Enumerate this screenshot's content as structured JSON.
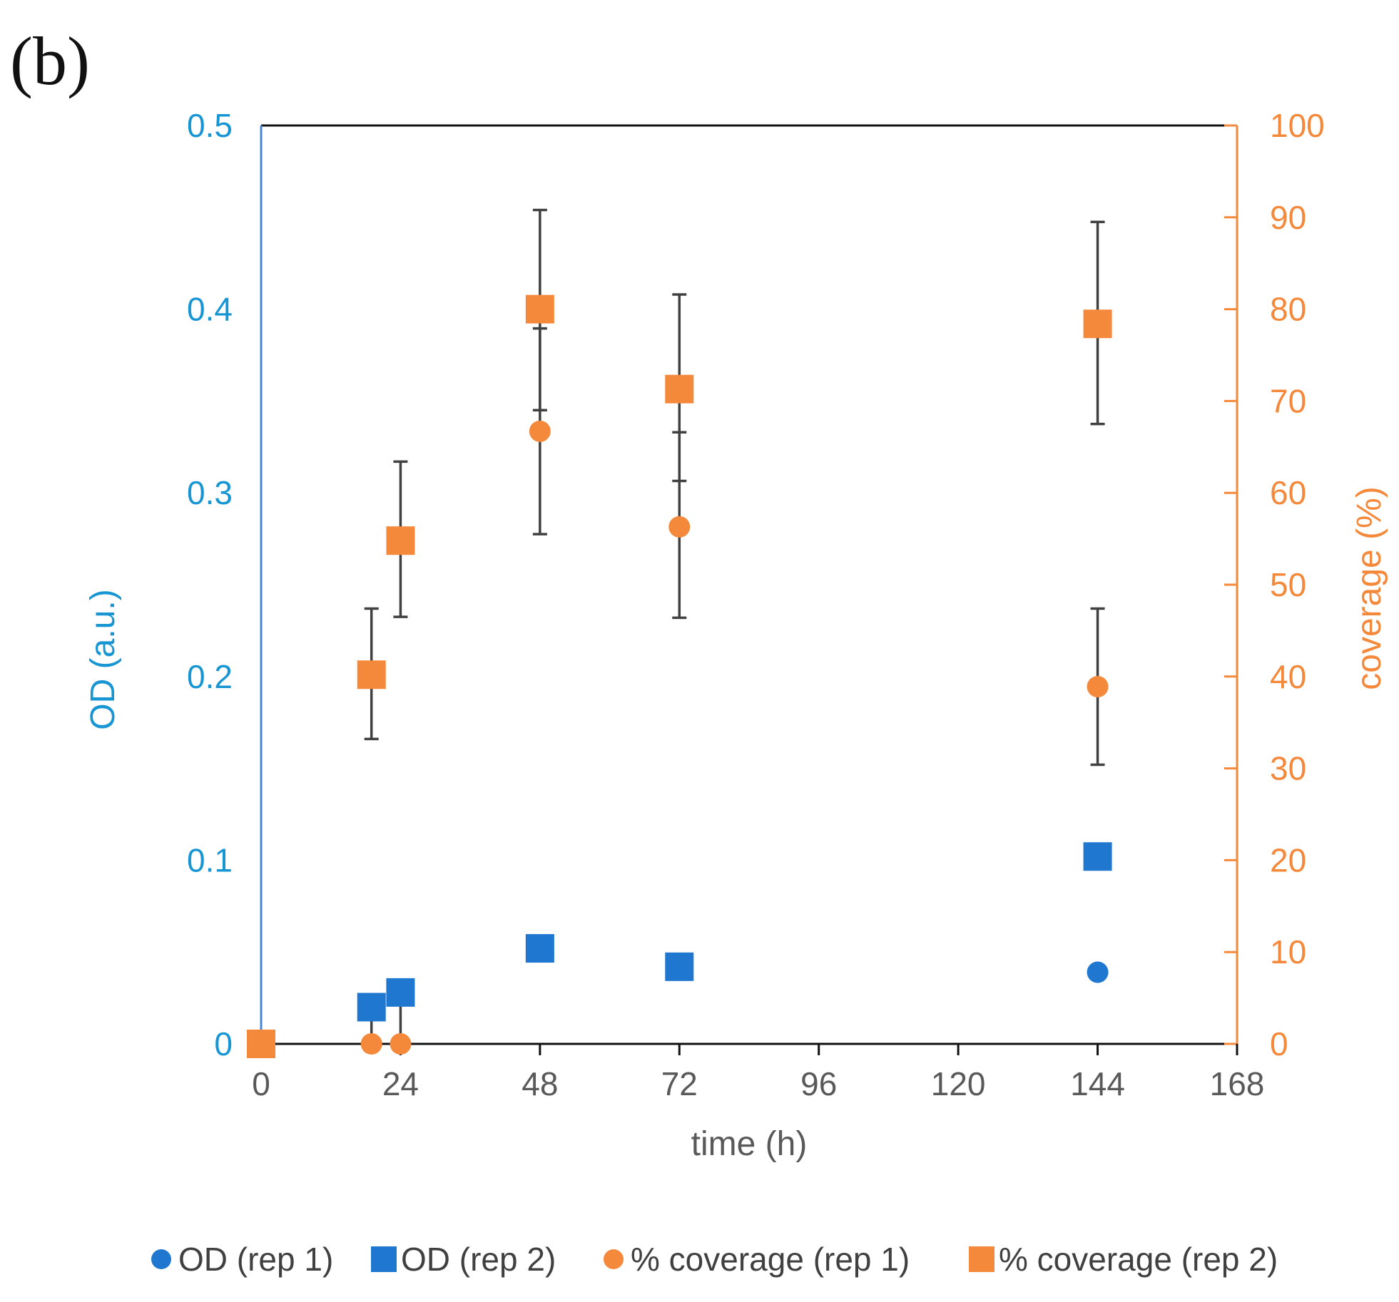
{
  "panel_label": "(b)",
  "colors": {
    "od": "#1f77d0",
    "coverage": "#f5893b",
    "left_axis": "#1796d3",
    "left_axis_line": "#4a86d8",
    "right_axis": "#f5893b",
    "error_bar": "#404040",
    "frame": "#111111"
  },
  "chart_data": {
    "type": "scatter",
    "xlabel": "time (h)",
    "ylabel_left": "OD (a.u.)",
    "ylabel_right": "coverage (%)",
    "xlim": [
      0,
      168
    ],
    "xticks": [
      0,
      24,
      48,
      72,
      96,
      120,
      144,
      168
    ],
    "ylim_left": [
      0,
      0.5
    ],
    "yticks_left": [
      "0",
      "0.1",
      "0.2",
      "0.3",
      "0.4",
      "0.5"
    ],
    "ylim_right": [
      0,
      100
    ],
    "yticks_right": [
      "0",
      "10",
      "20",
      "30",
      "40",
      "50",
      "60",
      "70",
      "80",
      "90",
      "100"
    ],
    "grid": false,
    "legend_position": "bottom",
    "series": [
      {
        "name": "OD (rep 1)",
        "axis": "left",
        "marker": "circle",
        "color": "#1f77d0",
        "points": [
          {
            "x": 144,
            "y": 0.039
          }
        ]
      },
      {
        "name": "OD (rep 2)",
        "axis": "left",
        "marker": "square",
        "color": "#1f77d0",
        "points": [
          {
            "x": 19,
            "y": 0.02
          },
          {
            "x": 24,
            "y": 0.028
          },
          {
            "x": 48,
            "y": 0.052
          },
          {
            "x": 72,
            "y": 0.042
          },
          {
            "x": 144,
            "y": 0.102
          }
        ]
      },
      {
        "name": "% coverage (rep 1)",
        "axis": "right",
        "marker": "circle",
        "color": "#f5893b",
        "points": [
          {
            "x": 19,
            "y": 0
          },
          {
            "x": 24,
            "y": 0
          },
          {
            "x": 48,
            "y": 66.7,
            "err_low": 55.5,
            "err_high": 77.9
          },
          {
            "x": 72,
            "y": 56.3,
            "err_low": 46.4,
            "err_high": 66.6
          },
          {
            "x": 144,
            "y": 38.9,
            "err_low": 30.4,
            "err_high": 47.4
          }
        ]
      },
      {
        "name": "% coverage (rep 2)",
        "axis": "right",
        "marker": "square",
        "color": "#f5893b",
        "points": [
          {
            "x": 0,
            "y": 0
          },
          {
            "x": 19,
            "y": 40.2,
            "err_low": 33.2,
            "err_high": 47.4
          },
          {
            "x": 24,
            "y": 54.8,
            "err_low": 46.5,
            "err_high": 63.4
          },
          {
            "x": 48,
            "y": 80.0,
            "err_low": 69.0,
            "err_high": 90.8
          },
          {
            "x": 72,
            "y": 71.3,
            "err_low": 61.3,
            "err_high": 81.6
          },
          {
            "x": 144,
            "y": 78.4,
            "err_low": 67.5,
            "err_high": 89.5
          }
        ]
      },
      {
        "name": "OD error bars",
        "axis": "left",
        "marker": "none",
        "points": [
          {
            "x": 19,
            "y": 0.02,
            "err_low": 0.0,
            "err_high": 0.024
          },
          {
            "x": 24,
            "y": 0.028,
            "err_low": 0.0,
            "err_high": 0.028
          }
        ]
      }
    ]
  }
}
